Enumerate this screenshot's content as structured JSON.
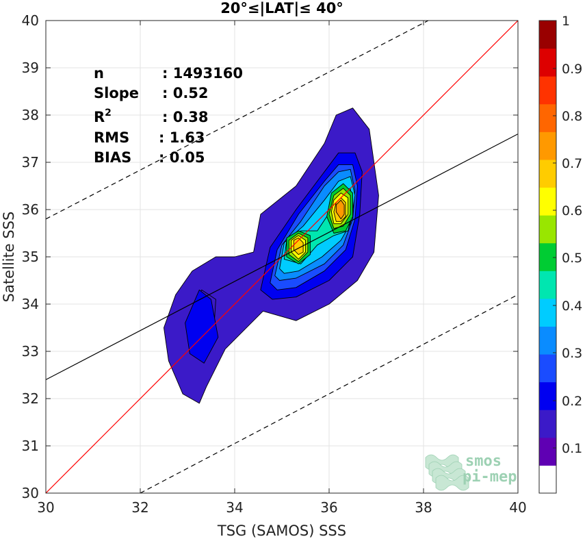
{
  "chart_data": {
    "type": "contour-density",
    "title": "20°≤|LAT|≤ 40°",
    "xlabel": "TSG (SAMOS) SSS",
    "ylabel": "Satellite SSS",
    "xlim": [
      30,
      40
    ],
    "ylim": [
      30,
      40
    ],
    "xticks": [
      "30",
      "32",
      "34",
      "36",
      "38",
      "40"
    ],
    "yticks": [
      "30",
      "31",
      "32",
      "33",
      "34",
      "35",
      "36",
      "37",
      "38",
      "39",
      "40"
    ],
    "grid": true,
    "stats": [
      {
        "label": "n",
        "value": ": 1493160"
      },
      {
        "label": "Slope",
        "value": ": 0.52"
      },
      {
        "label": "R",
        "sup": "2",
        "value": ": 0.38"
      },
      {
        "label": "RMS",
        "value": ": 1.63"
      },
      {
        "label": "BIAS",
        "value": ": 0.05"
      }
    ],
    "lines": [
      {
        "name": "1:1 line",
        "color": "#ff0000",
        "style": "solid",
        "x": [
          30,
          40
        ],
        "y": [
          30,
          40
        ]
      },
      {
        "name": "regression fit",
        "color": "#000000",
        "style": "solid",
        "x": [
          30,
          40
        ],
        "y": [
          32.4,
          37.6
        ]
      },
      {
        "name": "upper bound",
        "color": "#000000",
        "style": "dashed",
        "x": [
          30,
          38.1
        ],
        "y": [
          35.8,
          40
        ]
      },
      {
        "name": "lower bound",
        "color": "#000000",
        "style": "dashed",
        "x": [
          32,
          40
        ],
        "y": [
          30,
          34.2
        ]
      }
    ],
    "colorbar": {
      "ticks": [
        "0.1",
        "0.2",
        "0.3",
        "0.4",
        "0.5",
        "0.6",
        "0.7",
        "0.8",
        "0.9",
        "1"
      ],
      "levels": 15,
      "colors": [
        "#ffffff",
        "#5f00b3",
        "#3b1ac8",
        "#0000f0",
        "#1a4cff",
        "#0a8cff",
        "#00ccff",
        "#00e6b0",
        "#00cc33",
        "#99e600",
        "#ffff00",
        "#ffcc00",
        "#ff9900",
        "#ff6600",
        "#ff3300",
        "#dd0000",
        "#990000"
      ]
    },
    "contours": [
      {
        "level": 1,
        "polys": [
          [
            [
              33.25,
              31.9
            ],
            [
              32.9,
              32.1
            ],
            [
              32.6,
              32.8
            ],
            [
              32.5,
              33.5
            ],
            [
              32.75,
              34.2
            ],
            [
              33.1,
              34.7
            ],
            [
              33.6,
              35.0
            ],
            [
              34.0,
              35.0
            ],
            [
              34.4,
              35.1
            ],
            [
              34.55,
              35.9
            ],
            [
              35.3,
              36.5
            ],
            [
              35.9,
              37.4
            ],
            [
              36.15,
              38.0
            ],
            [
              36.5,
              38.15
            ],
            [
              36.85,
              37.7
            ],
            [
              37.05,
              36.3
            ],
            [
              36.95,
              35.1
            ],
            [
              36.6,
              34.5
            ],
            [
              36.0,
              34.0
            ],
            [
              35.3,
              33.65
            ],
            [
              34.6,
              33.85
            ],
            [
              34.2,
              33.45
            ],
            [
              33.8,
              33.05
            ],
            [
              33.4,
              32.25
            ]
          ],
          [
            [
              33.35,
              33.0
            ],
            [
              33.1,
              33.05
            ],
            [
              33.1,
              33.9
            ],
            [
              33.3,
              34.3
            ],
            [
              33.6,
              34.1
            ],
            [
              33.55,
              33.3
            ]
          ]
        ]
      },
      {
        "level": 2,
        "polys": [
          [
            [
              33.35,
              32.75
            ],
            [
              33.05,
              32.95
            ],
            [
              32.95,
              33.6
            ],
            [
              33.25,
              34.3
            ],
            [
              33.5,
              34.1
            ],
            [
              33.65,
              33.3
            ]
          ],
          [
            [
              34.55,
              34.3
            ],
            [
              34.75,
              35.2
            ],
            [
              35.3,
              36.0
            ],
            [
              35.9,
              36.8
            ],
            [
              36.2,
              37.2
            ],
            [
              36.55,
              37.2
            ],
            [
              36.7,
              36.8
            ],
            [
              36.65,
              35.9
            ],
            [
              36.5,
              35.0
            ],
            [
              36.0,
              34.5
            ],
            [
              35.3,
              34.15
            ],
            [
              34.8,
              34.1
            ]
          ]
        ]
      },
      {
        "level": 3,
        "polys": [
          [
            [
              34.75,
              34.45
            ],
            [
              34.9,
              35.15
            ],
            [
              35.35,
              35.9
            ],
            [
              35.9,
              36.6
            ],
            [
              36.2,
              36.95
            ],
            [
              36.5,
              36.95
            ],
            [
              36.6,
              36.5
            ],
            [
              36.55,
              35.8
            ],
            [
              36.35,
              35.15
            ],
            [
              35.9,
              34.7
            ],
            [
              35.3,
              34.35
            ],
            [
              34.9,
              34.3
            ]
          ]
        ]
      },
      {
        "level": 4,
        "polys": [
          [
            [
              34.85,
              34.6
            ],
            [
              35.0,
              35.25
            ],
            [
              35.4,
              35.75
            ],
            [
              35.9,
              36.5
            ],
            [
              36.2,
              36.8
            ],
            [
              36.45,
              36.85
            ],
            [
              36.55,
              36.4
            ],
            [
              36.5,
              35.8
            ],
            [
              36.3,
              35.25
            ],
            [
              35.9,
              34.85
            ],
            [
              35.3,
              34.55
            ],
            [
              34.95,
              34.5
            ]
          ]
        ]
      },
      {
        "level": 5,
        "polys": [
          [
            [
              34.95,
              34.75
            ],
            [
              35.05,
              35.3
            ],
            [
              35.45,
              35.65
            ],
            [
              35.9,
              36.2
            ],
            [
              36.2,
              36.6
            ],
            [
              36.45,
              36.7
            ],
            [
              36.55,
              36.3
            ],
            [
              36.45,
              35.7
            ],
            [
              36.25,
              35.35
            ],
            [
              35.85,
              35.0
            ],
            [
              35.35,
              34.7
            ],
            [
              35.05,
              34.65
            ]
          ]
        ]
      },
      {
        "level": 6,
        "polys": [
          [
            [
              35.05,
              34.95
            ],
            [
              35.1,
              35.35
            ],
            [
              35.4,
              35.55
            ],
            [
              35.75,
              35.55
            ],
            [
              35.95,
              35.85
            ],
            [
              36.15,
              36.35
            ],
            [
              36.45,
              36.45
            ],
            [
              36.5,
              36.0
            ],
            [
              36.4,
              35.55
            ],
            [
              36.1,
              35.45
            ],
            [
              35.75,
              35.25
            ],
            [
              35.4,
              34.85
            ]
          ]
        ]
      },
      {
        "level": 7,
        "polys": [
          [
            [
              35.1,
              35.0
            ],
            [
              35.1,
              35.4
            ],
            [
              35.35,
              35.55
            ],
            [
              35.6,
              35.45
            ],
            [
              35.6,
              35.05
            ],
            [
              35.35,
              34.85
            ]
          ],
          [
            [
              35.95,
              35.85
            ],
            [
              36.05,
              36.35
            ],
            [
              36.3,
              36.55
            ],
            [
              36.5,
              36.35
            ],
            [
              36.5,
              35.85
            ],
            [
              36.35,
              35.55
            ],
            [
              36.1,
              35.5
            ]
          ]
        ]
      },
      {
        "level": 8,
        "polys": [
          [
            [
              35.15,
              35.05
            ],
            [
              35.15,
              35.35
            ],
            [
              35.35,
              35.5
            ],
            [
              35.55,
              35.4
            ],
            [
              35.55,
              35.1
            ],
            [
              35.35,
              34.9
            ]
          ],
          [
            [
              36.0,
              35.9
            ],
            [
              36.1,
              36.3
            ],
            [
              36.3,
              36.45
            ],
            [
              36.45,
              36.3
            ],
            [
              36.45,
              35.9
            ],
            [
              36.3,
              35.65
            ],
            [
              36.1,
              35.6
            ]
          ]
        ]
      },
      {
        "level": 9,
        "polys": [
          [
            [
              35.2,
              35.1
            ],
            [
              35.2,
              35.35
            ],
            [
              35.35,
              35.45
            ],
            [
              35.5,
              35.35
            ],
            [
              35.5,
              35.1
            ],
            [
              35.35,
              34.95
            ]
          ],
          [
            [
              36.05,
              35.95
            ],
            [
              36.1,
              36.2
            ],
            [
              36.25,
              36.35
            ],
            [
              36.4,
              36.25
            ],
            [
              36.4,
              35.9
            ],
            [
              36.25,
              35.7
            ],
            [
              36.1,
              35.7
            ]
          ]
        ]
      },
      {
        "level": 10,
        "polys": [
          [
            [
              35.25,
              35.15
            ],
            [
              35.25,
              35.35
            ],
            [
              35.35,
              35.4
            ],
            [
              35.45,
              35.3
            ],
            [
              35.45,
              35.1
            ],
            [
              35.35,
              35.05
            ]
          ],
          [
            [
              36.1,
              35.95
            ],
            [
              36.15,
              36.15
            ],
            [
              36.25,
              36.25
            ],
            [
              36.35,
              36.15
            ],
            [
              36.35,
              35.85
            ],
            [
              36.25,
              35.75
            ],
            [
              36.15,
              35.75
            ]
          ]
        ]
      },
      {
        "level": 11,
        "polys": [
          [
            [
              36.15,
              35.95
            ],
            [
              36.15,
              36.1
            ],
            [
              36.25,
              36.2
            ],
            [
              36.32,
              36.1
            ],
            [
              36.32,
              35.9
            ],
            [
              36.25,
              35.8
            ]
          ]
        ]
      }
    ]
  },
  "watermark": {
    "line1": "smos",
    "line2": "pi-mep"
  }
}
